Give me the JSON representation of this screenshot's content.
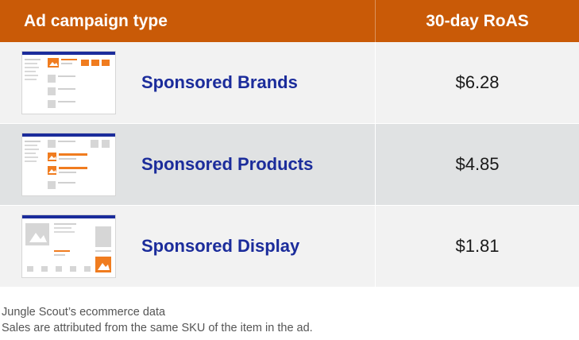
{
  "table": {
    "headers": [
      "Ad campaign type",
      "30-day RoAS"
    ],
    "rows": [
      {
        "type": "Sponsored Brands",
        "roas": "$6.28",
        "thumb_icon": "sponsored-brands-layout-icon"
      },
      {
        "type": "Sponsored Products",
        "roas": "$4.85",
        "thumb_icon": "sponsored-products-layout-icon"
      },
      {
        "type": "Sponsored Display",
        "roas": "$1.81",
        "thumb_icon": "sponsored-display-layout-icon"
      }
    ]
  },
  "footnotes": [
    "Jungle Scout’s ecommerce data",
    "Sales are attributed from the same SKU of the item in the ad."
  ],
  "colors": {
    "header": "#c95a07",
    "label": "#1b2c9b",
    "accent": "#f07c1f",
    "thumb_bar": "#1b2c9b"
  },
  "chart_data": {
    "type": "table",
    "columns": [
      "Ad campaign type",
      "30-day RoAS"
    ],
    "rows": [
      [
        "Sponsored Brands",
        "$6.28"
      ],
      [
        "Sponsored Products",
        "$4.85"
      ],
      [
        "Sponsored Display",
        "$1.81"
      ]
    ]
  }
}
